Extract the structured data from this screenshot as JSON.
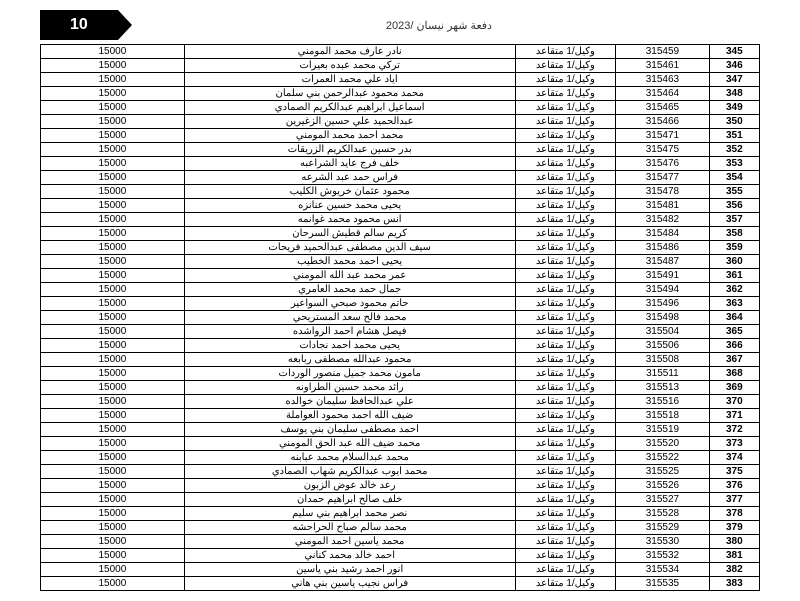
{
  "page_number": "10",
  "header_title": "دفعة شهر نيسان /2023",
  "rows": [
    {
      "seq": "345",
      "id": "315459",
      "rank": "وكيل/1 متقاعد",
      "name": "نادر عارف محمد المومني",
      "amt": "15000"
    },
    {
      "seq": "346",
      "id": "315461",
      "rank": "وكيل/1 متقاعد",
      "name": "تركي محمد عبده بعيرات",
      "amt": "15000"
    },
    {
      "seq": "347",
      "id": "315463",
      "rank": "وكيل/1 متقاعد",
      "name": "اياد علي محمد العمرات",
      "amt": "15000"
    },
    {
      "seq": "348",
      "id": "315464",
      "rank": "وكيل/1 متقاعد",
      "name": "محمد محمود عبدالرحمن بني سلمان",
      "amt": "15000"
    },
    {
      "seq": "349",
      "id": "315465",
      "rank": "وكيل/1 متقاعد",
      "name": "اسماعيل ابراهيم عبدالكريم الصمادي",
      "amt": "15000"
    },
    {
      "seq": "350",
      "id": "315466",
      "rank": "وكيل/1 متقاعد",
      "name": "عبدالحميد علي حسين الزغيرين",
      "amt": "15000"
    },
    {
      "seq": "351",
      "id": "315471",
      "rank": "وكيل/1 متقاعد",
      "name": "محمد احمد محمد المومني",
      "amt": "15000"
    },
    {
      "seq": "352",
      "id": "315475",
      "rank": "وكيل/1 متقاعد",
      "name": "بدر حسين عبدالكريم الزريقات",
      "amt": "15000"
    },
    {
      "seq": "353",
      "id": "315476",
      "rank": "وكيل/1 متقاعد",
      "name": "خلف فرج عايد الشراعبه",
      "amt": "15000"
    },
    {
      "seq": "354",
      "id": "315477",
      "rank": "وكيل/1 متقاعد",
      "name": "فراس حمد عبد الشرعه",
      "amt": "15000"
    },
    {
      "seq": "355",
      "id": "315478",
      "rank": "وكيل/1 متقاعد",
      "name": "محمود عثمان خريوش الكليب",
      "amt": "15000"
    },
    {
      "seq": "356",
      "id": "315481",
      "rank": "وكيل/1 متقاعد",
      "name": "يحيى محمد حسين عنانزه",
      "amt": "15000"
    },
    {
      "seq": "357",
      "id": "315482",
      "rank": "وكيل/1 متقاعد",
      "name": "انس محمود محمد غوانمه",
      "amt": "15000"
    },
    {
      "seq": "358",
      "id": "315484",
      "rank": "وكيل/1 متقاعد",
      "name": "كريم سالم قطيش السرحان",
      "amt": "15000"
    },
    {
      "seq": "359",
      "id": "315486",
      "rank": "وكيل/1 متقاعد",
      "name": "سيف الدين مصطفى عبدالحميد فريحات",
      "amt": "15000"
    },
    {
      "seq": "360",
      "id": "315487",
      "rank": "وكيل/1 متقاعد",
      "name": "يحيى احمد محمد الخطيب",
      "amt": "15000"
    },
    {
      "seq": "361",
      "id": "315491",
      "rank": "وكيل/1 متقاعد",
      "name": "عمر محمد عبد الله المومني",
      "amt": "15000"
    },
    {
      "seq": "362",
      "id": "315494",
      "rank": "وكيل/1 متقاعد",
      "name": "جمال حمد محمد العامري",
      "amt": "15000"
    },
    {
      "seq": "363",
      "id": "315496",
      "rank": "وكيل/1 متقاعد",
      "name": "حاتم محمود صبحي السواعير",
      "amt": "15000"
    },
    {
      "seq": "364",
      "id": "315498",
      "rank": "وكيل/1 متقاعد",
      "name": "محمد فالح سعد المستريحي",
      "amt": "15000"
    },
    {
      "seq": "365",
      "id": "315504",
      "rank": "وكيل/1 متقاعد",
      "name": "فيصل هشام احمد الرواشده",
      "amt": "15000"
    },
    {
      "seq": "366",
      "id": "315506",
      "rank": "وكيل/1 متقاعد",
      "name": "يحيى محمد احمد نجادات",
      "amt": "15000"
    },
    {
      "seq": "367",
      "id": "315508",
      "rank": "وكيل/1 متقاعد",
      "name": "محمود عبدالله مصطفى ربابعه",
      "amt": "15000"
    },
    {
      "seq": "368",
      "id": "315511",
      "rank": "وكيل/1 متقاعد",
      "name": "مامون محمد جميل منصور الوردات",
      "amt": "15000"
    },
    {
      "seq": "369",
      "id": "315513",
      "rank": "وكيل/1 متقاعد",
      "name": "رائد محمد حسين الطراونه",
      "amt": "15000"
    },
    {
      "seq": "370",
      "id": "315516",
      "rank": "وكيل/1 متقاعد",
      "name": "علي عبدالحافظ سليمان خوالده",
      "amt": "15000"
    },
    {
      "seq": "371",
      "id": "315518",
      "rank": "وكيل/1 متقاعد",
      "name": "ضيف الله احمد محمود العواملة",
      "amt": "15000"
    },
    {
      "seq": "372",
      "id": "315519",
      "rank": "وكيل/1 متقاعد",
      "name": "احمد مصطفى سليمان بني يوسف",
      "amt": "15000"
    },
    {
      "seq": "373",
      "id": "315520",
      "rank": "وكيل/1 متقاعد",
      "name": "محمد ضيف الله عبد الحق المومني",
      "amt": "15000"
    },
    {
      "seq": "374",
      "id": "315522",
      "rank": "وكيل/1 متقاعد",
      "name": "محمد عبدالسلام محمد عبابنه",
      "amt": "15000"
    },
    {
      "seq": "375",
      "id": "315525",
      "rank": "وكيل/1 متقاعد",
      "name": "محمد ايوب عبدالكريم شهاب الصمادي",
      "amt": "15000"
    },
    {
      "seq": "376",
      "id": "315526",
      "rank": "وكيل/1 متقاعد",
      "name": "رعد خالد عوض الزبون",
      "amt": "15000"
    },
    {
      "seq": "377",
      "id": "315527",
      "rank": "وكيل/1 متقاعد",
      "name": "خلف صالح ابراهيم حمدان",
      "amt": "15000"
    },
    {
      "seq": "378",
      "id": "315528",
      "rank": "وكيل/1 متقاعد",
      "name": "نصر محمد ابراهيم بني سليم",
      "amt": "15000"
    },
    {
      "seq": "379",
      "id": "315529",
      "rank": "وكيل/1 متقاعد",
      "name": "محمد سالم صباح الحراحشه",
      "amt": "15000"
    },
    {
      "seq": "380",
      "id": "315530",
      "rank": "وكيل/1 متقاعد",
      "name": "محمد ياسين احمد المومني",
      "amt": "15000"
    },
    {
      "seq": "381",
      "id": "315532",
      "rank": "وكيل/1 متقاعد",
      "name": "احمد خالد محمد كناني",
      "amt": "15000"
    },
    {
      "seq": "382",
      "id": "315534",
      "rank": "وكيل/1 متقاعد",
      "name": "انور احمد رشيد بني ياسين",
      "amt": "15000"
    },
    {
      "seq": "383",
      "id": "315535",
      "rank": "وكيل/1 متقاعد",
      "name": "فراس نجيب ياسين بني هاني",
      "amt": "15000"
    }
  ]
}
